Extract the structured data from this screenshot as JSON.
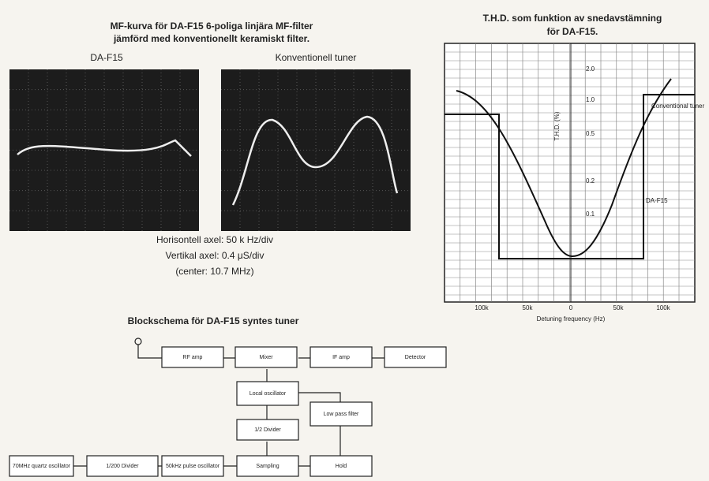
{
  "mf_figure": {
    "title_lines": [
      "MF-kurva för DA-F15 6-poliga linjära MF-filter",
      "jämförd med konventionellt keramiskt filter."
    ],
    "panels": [
      "DA-F15",
      "Konventionell tuner"
    ],
    "axis_notes": [
      "Horisontell axel: 50 k Hz/div",
      "Vertikal axel: 0.4 μS/div",
      "(center: 10.7 MHz)"
    ]
  },
  "thd_figure": {
    "title_lines": [
      "T.H.D. som funktion av snedavstämning",
      "för DA-F15."
    ],
    "y_labels": [
      "2.0",
      "1.0",
      "0.5",
      "0.2",
      "0.1"
    ],
    "y_axis_label": "T.H.D. (%)",
    "x_labels": [
      "100k",
      "50k",
      "0",
      "50k",
      "100k"
    ],
    "x_axis_label": "Detuning frequency (Hz)",
    "curve_labels": [
      "Conventional tuner",
      "DA-F15"
    ]
  },
  "block_diagram": {
    "title": "Blockschema för DA-F15 syntes tuner",
    "nodes": [
      "RF amp",
      "Mixer",
      "IF amp",
      "Detector",
      "Local oscillator",
      "Low pass filter",
      "1/2 Divider",
      "Sampling",
      "Hold",
      "70MHz quartz oscillator",
      "1/200 Divider",
      "50kHz pulse oscillator"
    ]
  }
}
